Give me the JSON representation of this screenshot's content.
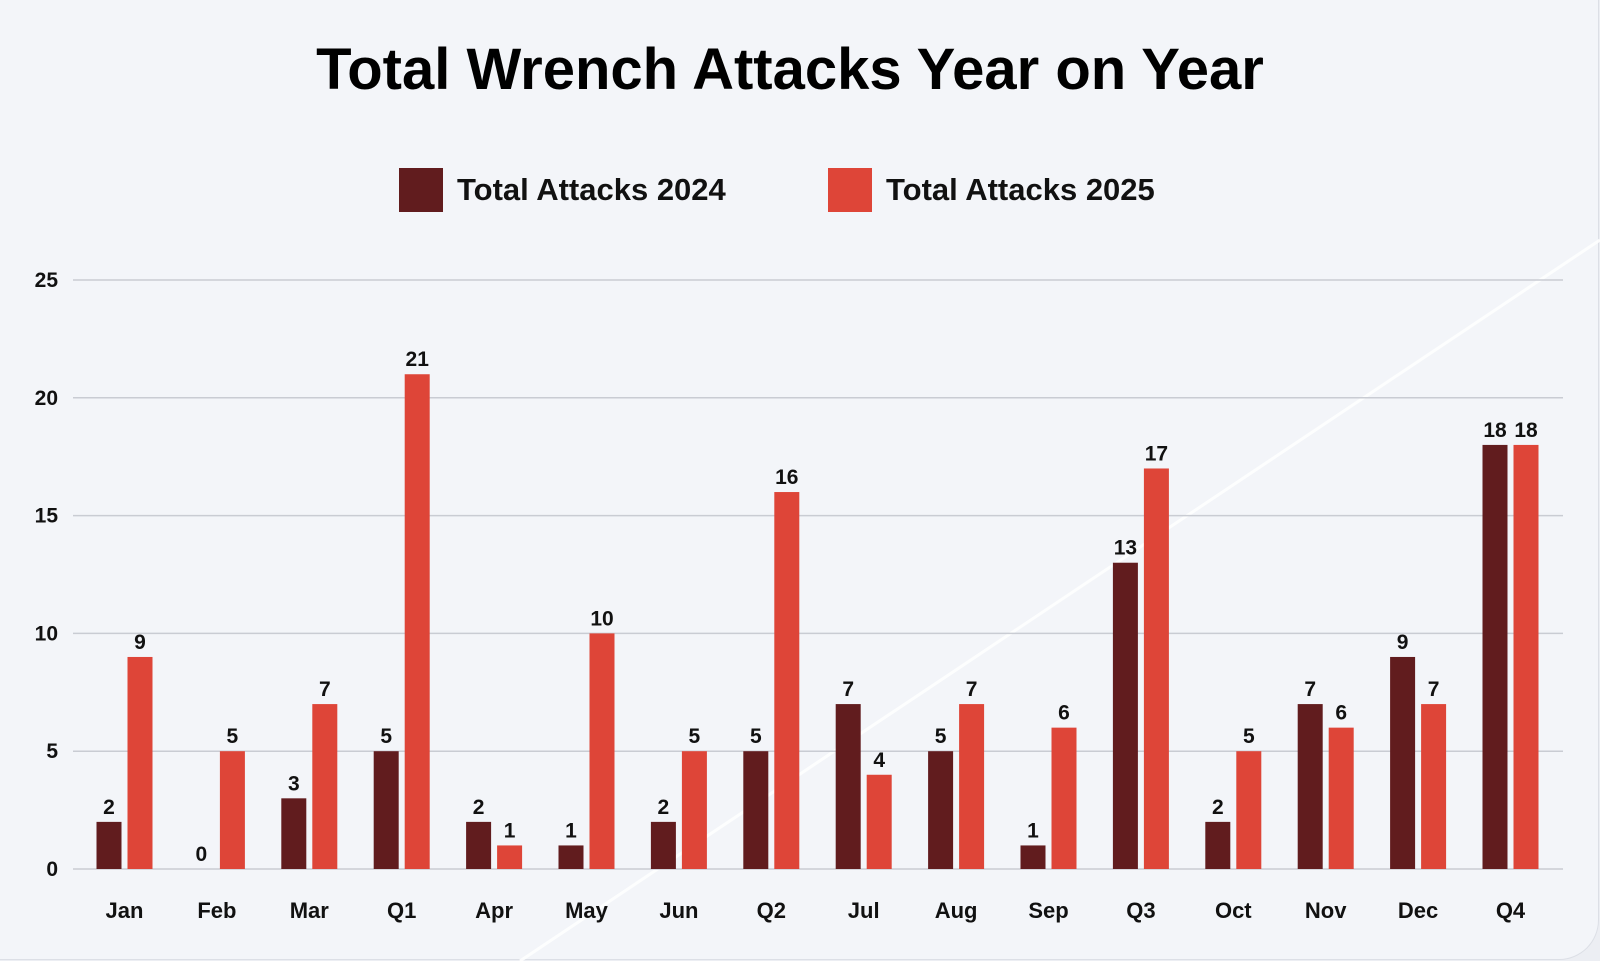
{
  "chart_data": {
    "type": "bar",
    "title": "Total Wrench Attacks Year on Year",
    "categories": [
      "Jan",
      "Feb",
      "Mar",
      "Q1",
      "Apr",
      "May",
      "Jun",
      "Q2",
      "Jul",
      "Aug",
      "Sep",
      "Q3",
      "Oct",
      "Nov",
      "Dec",
      "Q4"
    ],
    "series": [
      {
        "name": "Total Attacks 2024",
        "color": "#611c1e",
        "values": [
          2,
          0,
          3,
          5,
          2,
          1,
          2,
          5,
          7,
          5,
          1,
          13,
          2,
          7,
          9,
          18
        ]
      },
      {
        "name": "Total Attacks 2025",
        "color": "#de4538",
        "values": [
          9,
          5,
          7,
          21,
          1,
          10,
          5,
          16,
          4,
          7,
          6,
          17,
          5,
          6,
          7,
          18
        ]
      }
    ],
    "ylim": [
      0,
      25
    ],
    "yticks": [
      0,
      5,
      10,
      15,
      20,
      25
    ],
    "grid": true,
    "legend": "top-center",
    "data_labels": true
  }
}
